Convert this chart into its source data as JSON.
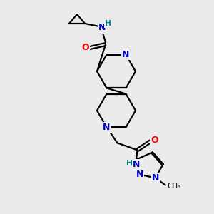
{
  "bg_color": "#ebebeb",
  "C": "#000000",
  "N": "#0000cc",
  "O": "#ff0000",
  "H": "#008080",
  "figsize": [
    3.0,
    3.0
  ],
  "dpi": 100,
  "lw": 1.6
}
